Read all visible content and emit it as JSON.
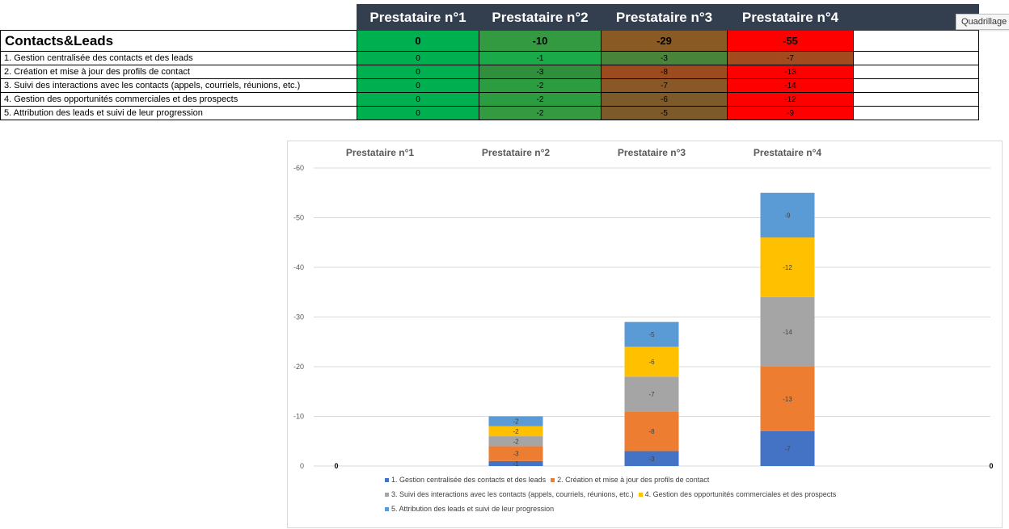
{
  "table": {
    "headers": [
      "Prestataire n°1",
      "Prestataire n°2",
      "Prestataire n°3",
      "Prestataire n°4"
    ],
    "title": "Contacts&Leads",
    "totals": [
      "0",
      "-10",
      "-29",
      "-55"
    ],
    "total_colors": [
      "#00b050",
      "#339a41",
      "#8a5a25",
      "#ff0000"
    ],
    "rows": [
      {
        "label": "1. Gestion centralisée des contacts et des leads",
        "values": [
          "0",
          "-1",
          "-3",
          "-7"
        ],
        "colors": [
          "#00b050",
          "#1aaa4a",
          "#48843a",
          "#a34a1e"
        ]
      },
      {
        "label": "2. Création et mise à jour des profils de contact",
        "values": [
          "0",
          "-3",
          "-8",
          "-13"
        ],
        "colors": [
          "#00b050",
          "#2f8f3d",
          "#9c4a1e",
          "#ff0000"
        ]
      },
      {
        "label": "3. Suivi des interactions avec les contacts (appels, courriels, réunions, etc.)",
        "values": [
          "0",
          "-2",
          "-7",
          "-14"
        ],
        "colors": [
          "#00b050",
          "#2c9c40",
          "#8a5828",
          "#ff0000"
        ]
      },
      {
        "label": "4. Gestion des opportunités commerciales et des prospects",
        "values": [
          "0",
          "-2",
          "-6",
          "-12"
        ],
        "colors": [
          "#00b050",
          "#2c9c40",
          "#7d5a2a",
          "#ff0000"
        ]
      },
      {
        "label": "5. Attribution des leads et suivi de leur progression",
        "values": [
          "0",
          "-2",
          "-5",
          "-9"
        ],
        "colors": [
          "#00b050",
          "#339a41",
          "#7d5a2a",
          "#ff0000"
        ]
      }
    ]
  },
  "tooltip": "Quadrillage",
  "chart_data": {
    "type": "bar",
    "stacked": true,
    "categories": [
      "Prestataire n°1",
      "Prestataire n°2",
      "Prestataire n°3",
      "Prestataire n°4"
    ],
    "axis_reversed": true,
    "ylim": [
      0,
      -60
    ],
    "yticks": [
      0,
      -10,
      -20,
      -30,
      -40,
      -50,
      -60
    ],
    "grid": true,
    "legend_position": "bottom",
    "zero_labels": [
      "0",
      "0"
    ],
    "series": [
      {
        "name": "1. Gestion centralisée des contacts et des leads",
        "values": [
          0,
          -1,
          -3,
          -7
        ],
        "color": "#4472c4"
      },
      {
        "name": "2. Création et mise à jour des profils de contact",
        "values": [
          0,
          -3,
          -8,
          -13
        ],
        "color": "#ed7d31"
      },
      {
        "name": "3. Suivi des interactions avec les contacts (appels, courriels, réunions, etc.)",
        "values": [
          0,
          -2,
          -7,
          -14
        ],
        "color": "#a5a5a5"
      },
      {
        "name": "4. Gestion des opportunités commerciales et des prospects",
        "values": [
          0,
          -2,
          -6,
          -12
        ],
        "color": "#ffc000"
      },
      {
        "name": "5. Attribution des leads et suivi de leur progression",
        "values": [
          0,
          -2,
          -5,
          -9
        ],
        "color": "#5b9bd5"
      }
    ]
  }
}
